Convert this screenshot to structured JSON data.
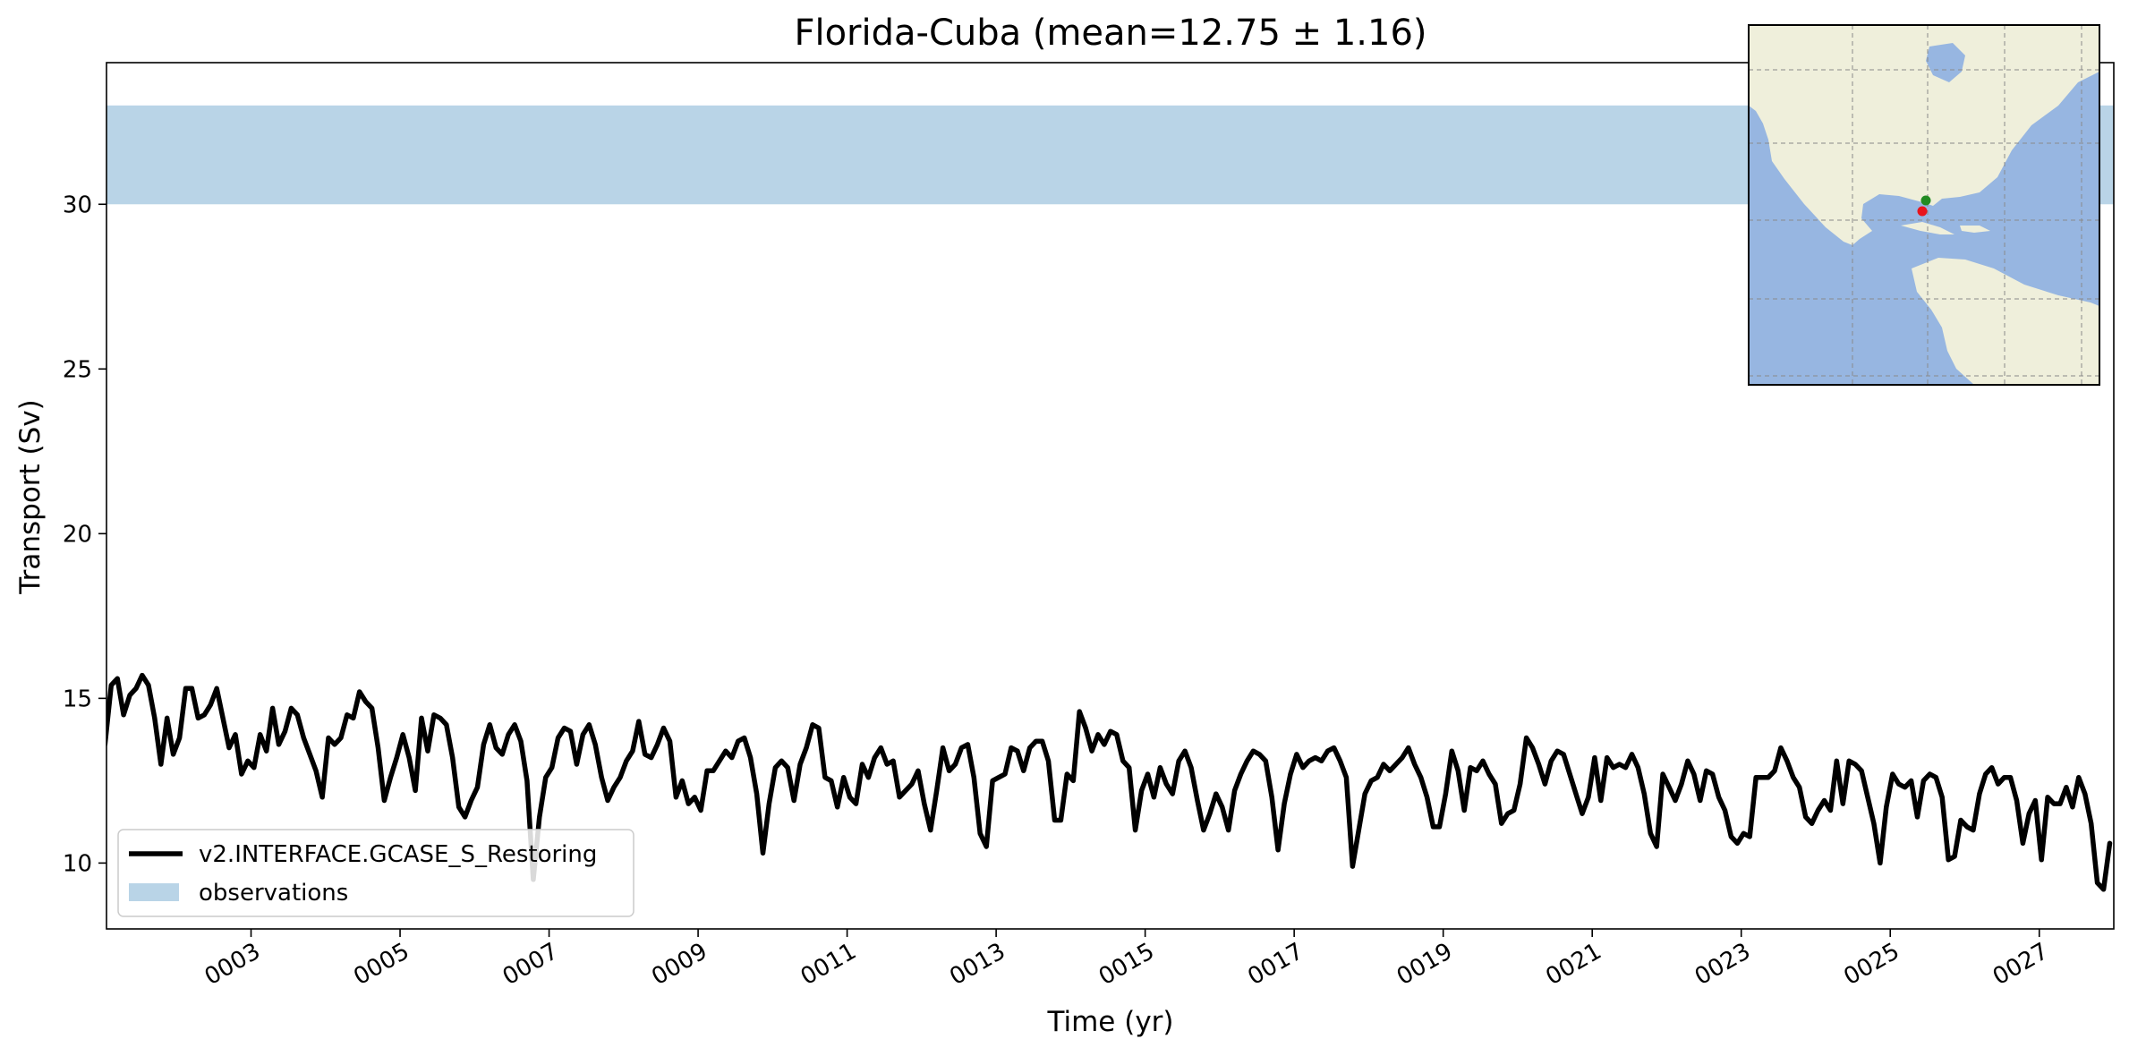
{
  "chart_data": {
    "type": "line",
    "title": "Florida-Cuba (mean=12.75 ± 1.16)",
    "xlabel": "Time (yr)",
    "ylabel": "Transport (Sv)",
    "xlim": [
      1.06,
      28.0
    ],
    "ylim": [
      8.0,
      34.3
    ],
    "x_ticks": [
      {
        "value": 3,
        "label": "0003"
      },
      {
        "value": 5,
        "label": "0005"
      },
      {
        "value": 7,
        "label": "0007"
      },
      {
        "value": 9,
        "label": "0009"
      },
      {
        "value": 11,
        "label": "0011"
      },
      {
        "value": 13,
        "label": "0013"
      },
      {
        "value": 15,
        "label": "0015"
      },
      {
        "value": 17,
        "label": "0017"
      },
      {
        "value": 19,
        "label": "0019"
      },
      {
        "value": 21,
        "label": "0021"
      },
      {
        "value": 23,
        "label": "0023"
      },
      {
        "value": 25,
        "label": "0025"
      },
      {
        "value": 27,
        "label": "0027"
      }
    ],
    "y_ticks": [
      10,
      15,
      20,
      25,
      30
    ],
    "grid": false,
    "legend_position": "lower-left",
    "observations": {
      "name": "observations",
      "range": [
        30.0,
        33.0
      ],
      "color": "#b9d4e7"
    },
    "series": [
      {
        "name": "v2.INTERFACE.GCASE_S_Restoring",
        "color": "#000000",
        "x_start": 1.04,
        "x_step": 0.0833,
        "values": [
          13.6,
          15.4,
          15.6,
          14.5,
          15.1,
          15.3,
          15.7,
          15.4,
          14.4,
          13.0,
          14.4,
          13.3,
          13.8,
          15.3,
          15.3,
          14.4,
          14.5,
          14.8,
          15.3,
          14.4,
          13.5,
          13.9,
          12.7,
          13.1,
          12.9,
          13.9,
          13.4,
          14.7,
          13.6,
          14.0,
          14.7,
          14.5,
          13.8,
          13.3,
          12.8,
          12.0,
          13.8,
          13.6,
          13.8,
          14.5,
          14.4,
          15.2,
          14.9,
          14.7,
          13.5,
          11.9,
          12.6,
          13.2,
          13.9,
          13.2,
          12.2,
          14.4,
          13.4,
          14.5,
          14.4,
          14.2,
          13.2,
          11.7,
          11.4,
          11.9,
          12.3,
          13.6,
          14.2,
          13.5,
          13.3,
          13.9,
          14.2,
          13.7,
          12.5,
          9.5,
          11.4,
          12.6,
          12.9,
          13.8,
          14.1,
          14.0,
          13.0,
          13.9,
          14.2,
          13.6,
          12.6,
          11.9,
          12.3,
          12.6,
          13.1,
          13.4,
          14.3,
          13.3,
          13.2,
          13.6,
          14.1,
          13.7,
          12.0,
          12.5,
          11.8,
          12.0,
          11.6,
          12.8,
          12.8,
          13.1,
          13.4,
          13.2,
          13.7,
          13.8,
          13.2,
          12.1,
          10.3,
          11.8,
          12.9,
          13.1,
          12.9,
          11.9,
          13.0,
          13.5,
          14.2,
          14.1,
          12.6,
          12.5,
          11.7,
          12.6,
          12.0,
          11.8,
          13.0,
          12.6,
          13.2,
          13.5,
          13.0,
          13.1,
          12.0,
          12.2,
          12.4,
          12.8,
          11.8,
          11.0,
          12.2,
          13.5,
          12.8,
          13.0,
          13.5,
          13.6,
          12.6,
          10.9,
          10.5,
          12.5,
          12.6,
          12.7,
          13.5,
          13.4,
          12.8,
          13.5,
          13.7,
          13.7,
          13.1,
          11.3,
          11.3,
          12.7,
          12.5,
          14.6,
          14.1,
          13.4,
          13.9,
          13.6,
          14.0,
          13.9,
          13.1,
          12.9,
          11.0,
          12.2,
          12.7,
          12.0,
          12.9,
          12.4,
          12.1,
          13.1,
          13.4,
          12.9,
          11.9,
          11.0,
          11.5,
          12.1,
          11.7,
          11.0,
          12.2,
          12.7,
          13.1,
          13.4,
          13.3,
          13.1,
          12.0,
          10.4,
          11.8,
          12.7,
          13.3,
          12.9,
          13.1,
          13.2,
          13.1,
          13.4,
          13.5,
          13.1,
          12.6,
          9.9,
          11.0,
          12.1,
          12.5,
          12.6,
          13.0,
          12.8,
          13.0,
          13.2,
          13.5,
          13.0,
          12.6,
          12.0,
          11.1,
          11.1,
          12.1,
          13.4,
          12.8,
          11.6,
          12.9,
          12.8,
          13.1,
          12.7,
          12.4,
          11.2,
          11.5,
          11.6,
          12.4,
          13.8,
          13.5,
          13.0,
          12.4,
          13.1,
          13.4,
          13.3,
          12.7,
          12.1,
          11.5,
          12.0,
          13.2,
          11.9,
          13.2,
          12.9,
          13.0,
          12.9,
          13.3,
          12.9,
          12.1,
          10.9,
          10.5,
          12.7,
          12.3,
          11.9,
          12.4,
          13.1,
          12.7,
          11.9,
          12.8,
          12.7,
          12.0,
          11.6,
          10.8,
          10.6,
          10.9,
          10.8,
          12.6,
          12.6,
          12.6,
          12.8,
          13.5,
          13.1,
          12.6,
          12.3,
          11.4,
          11.2,
          11.6,
          11.9,
          11.6,
          13.1,
          11.8,
          13.1,
          13.0,
          12.8,
          12.0,
          11.2,
          10.0,
          11.7,
          12.7,
          12.4,
          12.3,
          12.5,
          11.4,
          12.5,
          12.7,
          12.6,
          12.0,
          10.1,
          10.2,
          11.3,
          11.1,
          11.0,
          12.1,
          12.7,
          12.9,
          12.4,
          12.6,
          12.6,
          11.9,
          10.6,
          11.5,
          11.9,
          10.1,
          12.0,
          11.8,
          11.8,
          12.3,
          11.7,
          12.6,
          12.1,
          11.2,
          9.4,
          9.2,
          10.6
        ]
      }
    ],
    "inset_map": {
      "markers": [
        {
          "color": "#228b22"
        },
        {
          "color": "#e8141c"
        }
      ],
      "colors": {
        "ocean": "#97b6e1",
        "land": "#efefdb"
      }
    }
  }
}
